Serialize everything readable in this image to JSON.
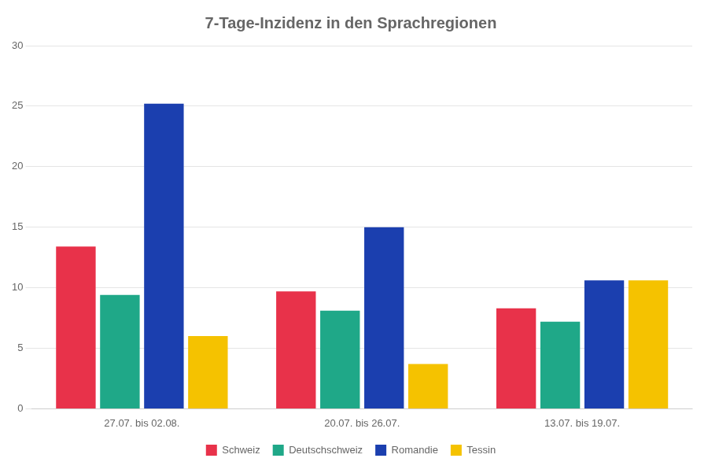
{
  "chart_data": {
    "type": "bar",
    "title": "7-Tage-Inzidenz in den Sprachregionen",
    "categories": [
      "27.07. bis 02.08.",
      "20.07. bis 26.07.",
      "13.07. bis 19.07."
    ],
    "series": [
      {
        "name": "Schweiz",
        "color": "#E8324A",
        "values": [
          13.4,
          9.7,
          8.3
        ]
      },
      {
        "name": "Deutschschweiz",
        "color": "#1FA888",
        "values": [
          9.4,
          8.1,
          7.2
        ]
      },
      {
        "name": "Romandie",
        "color": "#1B3FAF",
        "values": [
          25.2,
          15.0,
          10.6
        ]
      },
      {
        "name": "Tessin",
        "color": "#F5C200",
        "values": [
          6.0,
          3.7,
          10.6
        ]
      }
    ],
    "ylim": [
      0,
      30
    ],
    "yticks": [
      0,
      5,
      10,
      15,
      20,
      25,
      30
    ],
    "grid": true,
    "legend": "bottom"
  }
}
